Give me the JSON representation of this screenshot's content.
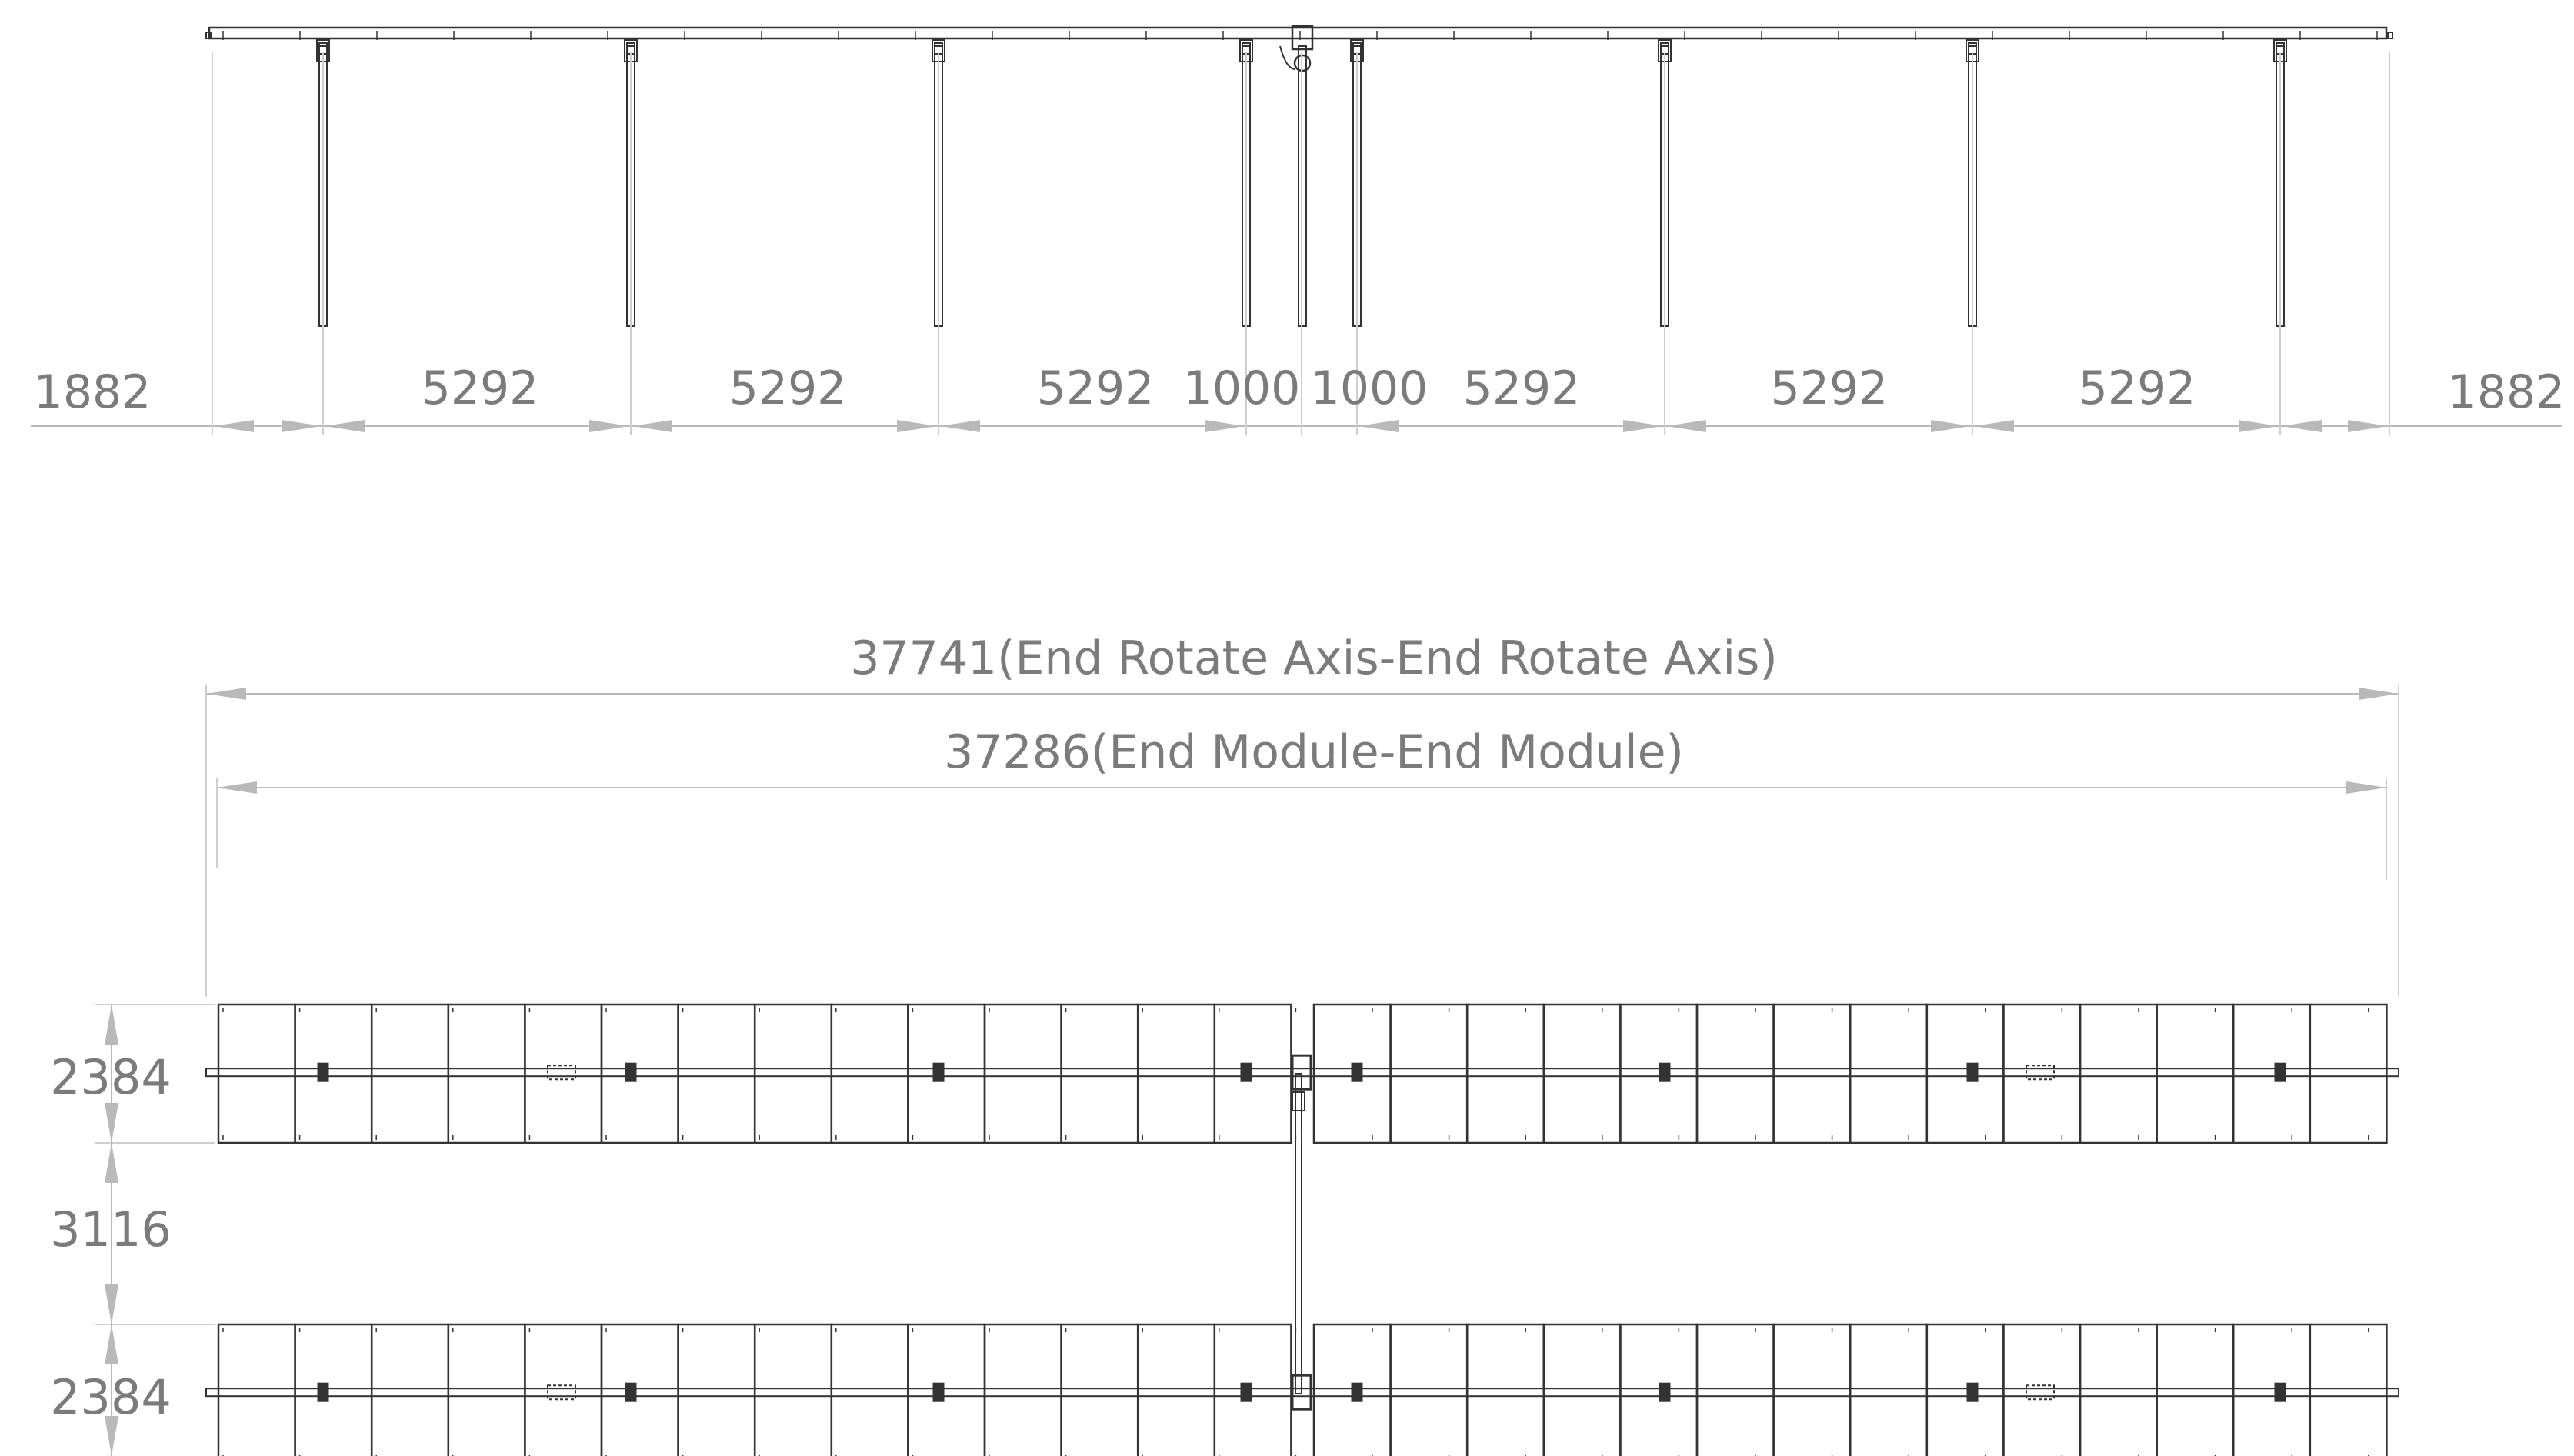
{
  "diagram": {
    "side_view": {
      "dimensions": {
        "left_overhang": "1882",
        "right_overhang": "1882",
        "left_spans": [
          "5292",
          "5292",
          "5292"
        ],
        "center_gaps": [
          "1000",
          "1000"
        ],
        "right_spans": [
          "5292",
          "5292",
          "5292"
        ]
      }
    },
    "plan_view": {
      "total_axis_length": "37741(End Rotate Axis-End Rotate Axis)",
      "total_module_length": "37286(End Module-End Module)",
      "row_widths": [
        "2384",
        "2384"
      ],
      "row_spacing": "3116"
    },
    "colors": {
      "dimension_text": "#7b7b7b",
      "dimension_line": "#b9b9b9",
      "part_outline": "#333333"
    }
  }
}
